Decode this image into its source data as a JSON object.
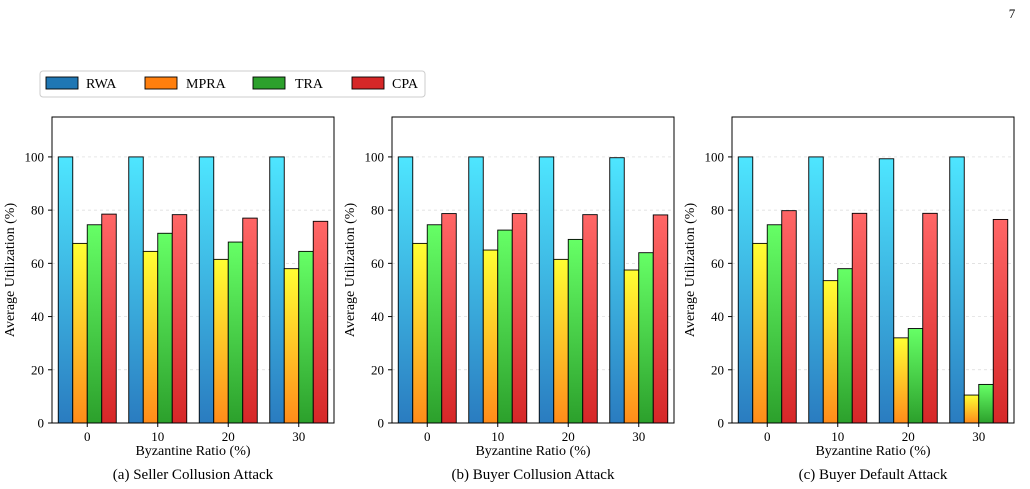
{
  "page_number": "7",
  "legend": {
    "entries": [
      {
        "name": "RWA",
        "swatch": "#1f77b4"
      },
      {
        "name": "MPRA",
        "swatch": "#ff7f0e"
      },
      {
        "name": "TRA",
        "swatch": "#2ca02c"
      },
      {
        "name": "CPA",
        "swatch": "#d62728"
      }
    ]
  },
  "series_colors": {
    "RWA": {
      "top": "#4ee6ff",
      "bottom": "#2a7cc0"
    },
    "MPRA": {
      "top": "#ffff33",
      "bottom": "#ff8c1a"
    },
    "TRA": {
      "top": "#66ff66",
      "bottom": "#2ca02c"
    },
    "CPA": {
      "top": "#ff6666",
      "bottom": "#d62728"
    }
  },
  "chart_data": [
    {
      "type": "bar",
      "caption": "(a) Seller Collusion Attack",
      "xlabel": "Byzantine Ratio (%)",
      "ylabel": "Average Utilization (%)",
      "categories": [
        "0",
        "10",
        "20",
        "30"
      ],
      "ylim": [
        0,
        115
      ],
      "yticks": [
        "0",
        "20",
        "40",
        "60",
        "80",
        "100"
      ],
      "grid": true,
      "series": [
        {
          "name": "RWA",
          "values": [
            100,
            100,
            100,
            100
          ]
        },
        {
          "name": "MPRA",
          "values": [
            67.5,
            64.5,
            61.5,
            58
          ]
        },
        {
          "name": "TRA",
          "values": [
            74.5,
            71.3,
            68,
            64.5
          ]
        },
        {
          "name": "CPA",
          "values": [
            78.5,
            78.3,
            77,
            75.8
          ]
        }
      ]
    },
    {
      "type": "bar",
      "caption": "(b) Buyer Collusion Attack",
      "xlabel": "Byzantine Ratio (%)",
      "ylabel": "Average Utilization (%)",
      "categories": [
        "0",
        "10",
        "20",
        "30"
      ],
      "ylim": [
        0,
        115
      ],
      "yticks": [
        "0",
        "20",
        "40",
        "60",
        "80",
        "100"
      ],
      "grid": true,
      "series": [
        {
          "name": "RWA",
          "values": [
            100,
            100,
            100,
            99.7
          ]
        },
        {
          "name": "MPRA",
          "values": [
            67.5,
            65,
            61.5,
            57.5
          ]
        },
        {
          "name": "TRA",
          "values": [
            74.5,
            72.5,
            69,
            64
          ]
        },
        {
          "name": "CPA",
          "values": [
            78.7,
            78.7,
            78.3,
            78.2
          ]
        }
      ]
    },
    {
      "type": "bar",
      "caption": "(c) Buyer Default Attack",
      "xlabel": "Byzantine Ratio (%)",
      "ylabel": "Average Utilization (%)",
      "categories": [
        "0",
        "10",
        "20",
        "30"
      ],
      "ylim": [
        0,
        115
      ],
      "yticks": [
        "0",
        "20",
        "40",
        "60",
        "80",
        "100"
      ],
      "grid": true,
      "series": [
        {
          "name": "RWA",
          "values": [
            100,
            100,
            99.3,
            100
          ]
        },
        {
          "name": "MPRA",
          "values": [
            67.5,
            53.5,
            32,
            10.5
          ]
        },
        {
          "name": "TRA",
          "values": [
            74.5,
            58,
            35.5,
            14.5
          ]
        },
        {
          "name": "CPA",
          "values": [
            79.8,
            78.8,
            78.8,
            76.5
          ]
        }
      ]
    }
  ]
}
